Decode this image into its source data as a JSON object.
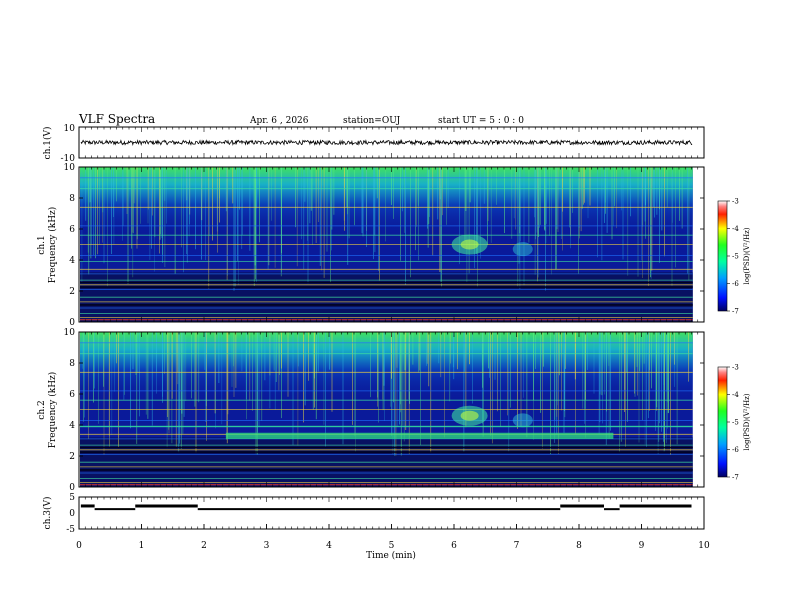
{
  "header": {
    "title": "VLF Spectra",
    "date": "Apr. 6  , 2026",
    "station": "station=OUJ",
    "start": "start  UT =   5 : 0  : 0"
  },
  "colors": {
    "background_low": "#000030",
    "spectrum_bg": "#0a1a9a",
    "noise_band": "#2bd26a",
    "line": "#000000"
  },
  "chart_data": [
    {
      "type": "line",
      "name": "ch1-waveform",
      "ylabel": "ch.1(V)",
      "ylim": [
        -10,
        10
      ],
      "y_ticks": [
        "10",
        "-10"
      ],
      "xlim": [
        0,
        10
      ],
      "mean": 0,
      "amplitude_range": [
        -1.5,
        1.5
      ]
    },
    {
      "type": "heatmap",
      "name": "ch1-spectrogram",
      "ylabel": "ch.1\nFrequency (kHz)",
      "ylim": [
        0,
        10
      ],
      "y_ticks": [
        "0",
        "2",
        "4",
        "6",
        "8",
        "10"
      ],
      "xlim": [
        0,
        10
      ],
      "colorbar": {
        "label": "log(PSD)(V²/Hz)",
        "range": [
          -7,
          -3
        ],
        "ticks": [
          "-3",
          "-4",
          "-5",
          "-6",
          "-7"
        ]
      }
    },
    {
      "type": "heatmap",
      "name": "ch2-spectrogram",
      "ylabel": "ch.2\nFrequency (kHz)",
      "ylim": [
        0,
        10
      ],
      "y_ticks": [
        "0",
        "2",
        "4",
        "6",
        "8",
        "10"
      ],
      "xlim": [
        0,
        10
      ],
      "colorbar": {
        "label": "log(PSD)(V²/Hz)",
        "range": [
          -7,
          -3
        ],
        "ticks": [
          "-3",
          "-4",
          "-5",
          "-6",
          "-7"
        ]
      }
    },
    {
      "type": "line",
      "name": "ch3-status",
      "ylabel": "ch.3(V)",
      "ylim": [
        -5,
        5
      ],
      "y_ticks": [
        "5",
        "0",
        "-5"
      ],
      "xlim": [
        0,
        10
      ],
      "x_ticks": [
        "0",
        "1",
        "2",
        "3",
        "4",
        "5",
        "6",
        "7",
        "8",
        "9",
        "10"
      ],
      "xlabel": "Time  (min)",
      "segments": [
        {
          "x0": 0.03,
          "x1": 0.25,
          "y": 2.2
        },
        {
          "x0": 0.25,
          "x1": 0.9,
          "y": 1.2
        },
        {
          "x0": 0.9,
          "x1": 1.9,
          "y": 2.2
        },
        {
          "x0": 1.9,
          "x1": 7.7,
          "y": 1.2
        },
        {
          "x0": 7.7,
          "x1": 8.4,
          "y": 2.2
        },
        {
          "x0": 8.4,
          "x1": 8.65,
          "y": 1.2
        },
        {
          "x0": 8.65,
          "x1": 9.8,
          "y": 2.2
        }
      ]
    }
  ]
}
